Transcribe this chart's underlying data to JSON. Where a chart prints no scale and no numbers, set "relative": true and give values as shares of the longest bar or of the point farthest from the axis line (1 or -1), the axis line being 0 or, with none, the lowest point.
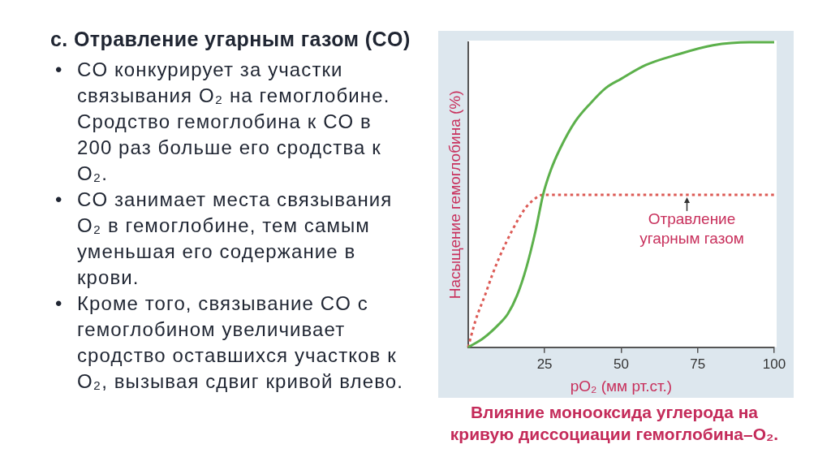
{
  "chart_data": {
    "type": "line",
    "title": "c. Отравление угарным газом (CO)",
    "subtitle": "Влияние монооксида углерода на кривую диссоциации гемоглобина–O₂.",
    "xlabel": "pO₂ (мм рт.ст.)",
    "ylabel": "Насыщение гемоглобина (%)",
    "relative": true,
    "xlim": [
      0,
      100
    ],
    "xticks": [
      25,
      50,
      75,
      100
    ],
    "grid": false,
    "legend": false,
    "marker": "none",
    "series": [
      {
        "color": "#5cb04b",
        "line_style": "solid",
        "x": [
          0,
          5,
          10,
          13,
          16,
          19,
          22,
          24.5,
          27,
          30,
          35,
          40,
          45,
          50,
          58,
          68.5,
          80,
          92,
          100
        ],
        "values": [
          0,
          0.03,
          0.075,
          0.11,
          0.17,
          0.26,
          0.38,
          0.5,
          0.58,
          0.65,
          0.74,
          0.8,
          0.85,
          0.88,
          0.925,
          0.96,
          0.99,
          1,
          1
        ]
      },
      {
        "color": "#dc5a55",
        "line_style": "dotted",
        "x": [
          0,
          2.5,
          5.5,
          8,
          10,
          12.5,
          14.5,
          17,
          19,
          21,
          23,
          24.5,
          100
        ],
        "values": [
          0,
          0.09,
          0.17,
          0.24,
          0.29,
          0.345,
          0.385,
          0.43,
          0.46,
          0.48,
          0.495,
          0.5,
          0.5
        ]
      }
    ],
    "annotations": [
      "• CO конкурирует за участки связывания O₂ на гемоглобине. Сродство гемоглобина к CO в 200 раз больше его сродства к O₂.",
      "• CO занимает места связывания O₂ в гемоглобине, тем самым уменьшая его содержание в крови.",
      "• Кроме того, связывание CO с гемоглобином увеличивает сродство оставшихся участков к O₂, вызывая сдвиг кривой влево.",
      {
        "text": "Отравление угарным газом",
        "x": 71.5,
        "y": 0.5
      }
    ]
  }
}
